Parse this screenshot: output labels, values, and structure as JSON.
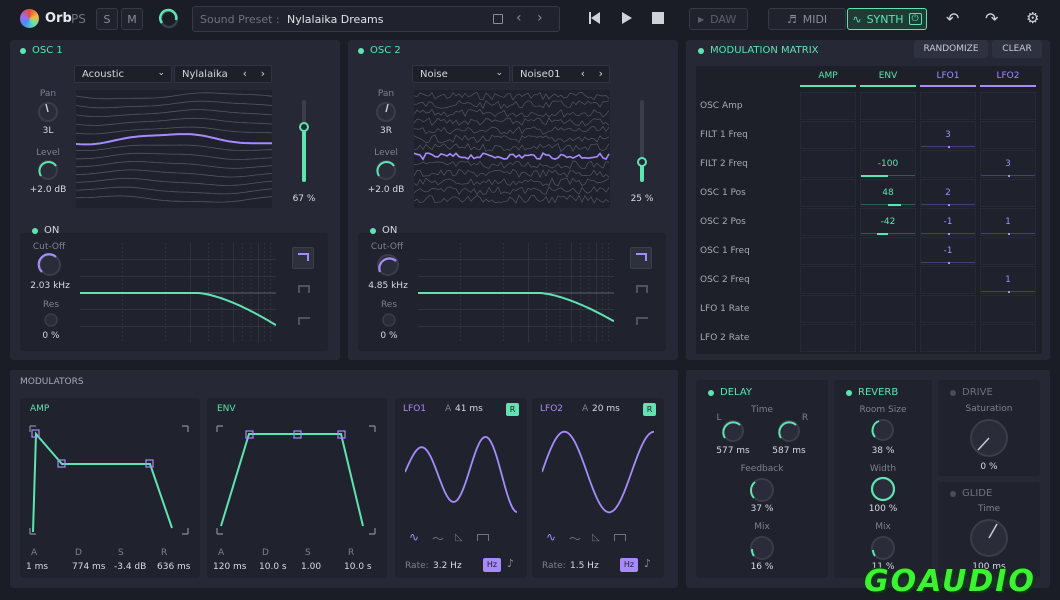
{
  "topbar": {
    "app": "Orb",
    "app_sub": "PS",
    "btn_s": "S",
    "btn_m": "M",
    "preset_label": "Sound Preset :",
    "preset_name": "Nylalaika Dreams",
    "daw": "DAW",
    "midi": "MIDI",
    "synth": "SYNTH"
  },
  "osc1": {
    "title": "OSC 1",
    "wave": "Acoustic",
    "sub": "Nylalaika",
    "pan_label": "Pan",
    "pan": "3L",
    "level_label": "Level",
    "level": "+2.0 dB",
    "vol": "67 %",
    "vol_frac": 0.67,
    "filter_on": "ON",
    "cutoff_label": "Cut-Off",
    "cutoff": "2.03 kHz",
    "res_label": "Res",
    "res": "0 %"
  },
  "osc2": {
    "title": "OSC 2",
    "wave": "Noise",
    "sub": "Noise01",
    "pan_label": "Pan",
    "pan": "3R",
    "level_label": "Level",
    "level": "+2.0 dB",
    "vol": "25 %",
    "vol_frac": 0.25,
    "filter_on": "ON",
    "cutoff_label": "Cut-Off",
    "cutoff": "4.85 kHz",
    "res_label": "Res",
    "res": "0 %"
  },
  "matrix": {
    "title": "MODULATION MATRIX",
    "randomize": "RANDOMIZE",
    "clear": "CLEAR",
    "cols": [
      "AMP",
      "ENV",
      "LFO1",
      "LFO2"
    ],
    "rows": [
      {
        "name": "OSC Amp",
        "vals": [
          "",
          "",
          "",
          ""
        ]
      },
      {
        "name": "FILT 1 Freq",
        "vals": [
          "",
          "",
          "3",
          ""
        ]
      },
      {
        "name": "FILT 2 Freq",
        "vals": [
          "",
          "-100",
          "",
          "3"
        ]
      },
      {
        "name": "OSC 1 Pos",
        "vals": [
          "",
          "48",
          "2",
          ""
        ]
      },
      {
        "name": "OSC 2 Pos",
        "vals": [
          "",
          "-42",
          "-1",
          "1"
        ]
      },
      {
        "name": "OSC 1 Freq",
        "vals": [
          "",
          "",
          "-1",
          ""
        ]
      },
      {
        "name": "OSC 2 Freq",
        "vals": [
          "",
          "",
          "",
          "1"
        ]
      },
      {
        "name": "LFO 1 Rate",
        "vals": [
          "",
          "",
          "",
          ""
        ]
      },
      {
        "name": "LFO 2 Rate",
        "vals": [
          "",
          "",
          "",
          ""
        ]
      }
    ]
  },
  "modulators": {
    "title": "MODULATORS",
    "amp": {
      "title": "AMP",
      "a_label": "A",
      "a": "1 ms",
      "d_label": "D",
      "d": "774 ms",
      "s_label": "S",
      "s": "-3.4 dB",
      "r_label": "R",
      "r": "636 ms"
    },
    "env": {
      "title": "ENV",
      "a_label": "A",
      "a": "120 ms",
      "d_label": "D",
      "d": "10.0 s",
      "s_label": "S",
      "s": "1.00",
      "r_label": "R",
      "r": "10.0 s"
    },
    "lfo1": {
      "title": "LFO1",
      "a_label": "A",
      "a": "41 ms",
      "r_badge": "R",
      "rate_label": "Rate:",
      "rate": "3.2 Hz",
      "unit": "Hz"
    },
    "lfo2": {
      "title": "LFO2",
      "a_label": "A",
      "a": "20 ms",
      "r_badge": "R",
      "rate_label": "Rate:",
      "rate": "1.5 Hz",
      "unit": "Hz"
    }
  },
  "delay": {
    "title": "DELAY",
    "time_label": "Time",
    "l_label": "L",
    "r_label": "R",
    "l": "577 ms",
    "r": "587 ms",
    "fb_label": "Feedback",
    "fb": "37 %",
    "mix_label": "Mix",
    "mix": "16 %"
  },
  "reverb": {
    "title": "REVERB",
    "room_label": "Room Size",
    "room": "38 %",
    "width_label": "Width",
    "width": "100 %",
    "mix_label": "Mix",
    "mix": "11 %"
  },
  "drive": {
    "title": "DRIVE",
    "sat_label": "Saturation",
    "sat": "0 %"
  },
  "glide": {
    "title": "GLIDE",
    "time_label": "Time",
    "time": "100 ms"
  },
  "watermark": "GOAUDIO",
  "colors": {
    "accent": "#5fe3b0",
    "purple": "#a78bfa",
    "bg": "#1b1d26",
    "panel": "#262935"
  }
}
